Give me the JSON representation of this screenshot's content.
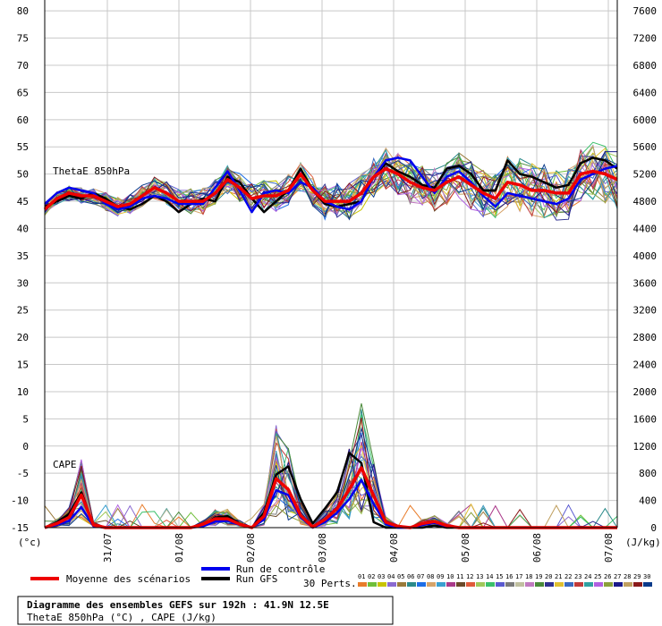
{
  "chart_data": {
    "type": "line",
    "title": "Diagramme des ensembles GEFS sur 192h : 41.9N 12.5E",
    "subtitle": "ThetaE 850hPa (°C) , CAPE (J/kg)",
    "left_axis_unit": "(°c)",
    "right_axis_unit": "(J/kg)",
    "left_ticks": [
      80,
      75,
      70,
      65,
      60,
      55,
      50,
      45,
      40,
      35,
      30,
      25,
      20,
      15,
      10,
      5,
      0,
      -5,
      -10,
      -15
    ],
    "right_ticks": [
      7600,
      7200,
      6800,
      6400,
      6000,
      5600,
      5200,
      4800,
      4400,
      4000,
      3600,
      3200,
      2800,
      2400,
      2000,
      1600,
      1200,
      800,
      400,
      0
    ],
    "ylim": [
      -15,
      82
    ],
    "right_ylim": [
      0,
      7760
    ],
    "x_ticks": [
      "31/07",
      "01/08",
      "02/08",
      "03/08",
      "04/08",
      "05/08",
      "06/08",
      "07/08"
    ],
    "x_step_hours": 6,
    "grid": true,
    "panel_labels": [
      "ThetaE 850hPa",
      "CAPE"
    ],
    "legend": {
      "mean_label": "Moyenne des scénarios",
      "control_label": "Run de contrôle",
      "gfs_label": "Run GFS",
      "perts_label": "30 Perts.",
      "perts_numbers": [
        "01",
        "02",
        "03",
        "04",
        "05",
        "06",
        "07",
        "08",
        "09",
        "10",
        "11",
        "12",
        "13",
        "14",
        "15",
        "16",
        "17",
        "18",
        "19",
        "20",
        "21",
        "22",
        "23",
        "24",
        "25",
        "26",
        "27",
        "28",
        "29",
        "30"
      ]
    },
    "colors": {
      "mean": "#ee0000",
      "control": "#0000ee",
      "gfs": "#000000",
      "perts": [
        "#e87c2a",
        "#6fbf3a",
        "#c8c400",
        "#8a6ad0",
        "#9a7a3a",
        "#2a8a8a",
        "#1e6ee6",
        "#d6a46a",
        "#3aa0d0",
        "#aa3a8a",
        "#6a4a2a",
        "#e05a3a",
        "#a0c85a",
        "#3ac06a",
        "#5a5ad0",
        "#7a7a7a",
        "#c0c0a0",
        "#c07ac0",
        "#4a8a3a",
        "#303090",
        "#e0c030",
        "#3a6ac0",
        "#c03a3a",
        "#30a0a0",
        "#b060e0",
        "#8aa03a",
        "#1a1a8a",
        "#c0a060",
        "#8a1a1a",
        "#0a3a8a"
      ]
    },
    "series": [
      {
        "name": "Moyenne des scénarios",
        "role": "mean",
        "panel": "thetae",
        "values": [
          43.5,
          45.5,
          46.5,
          46.0,
          46.0,
          45.0,
          44.0,
          44.5,
          46.0,
          47.5,
          46.5,
          45.0,
          45.0,
          45.0,
          46.5,
          49.0,
          47.5,
          45.5,
          46.0,
          46.0,
          47.0,
          50.0,
          47.0,
          45.0,
          45.0,
          45.0,
          46.5,
          49.5,
          51.0,
          50.0,
          48.5,
          47.5,
          47.0,
          48.5,
          49.5,
          48.0,
          46.5,
          45.5,
          48.5,
          48.0,
          47.0,
          47.0,
          46.5,
          46.5,
          50.0,
          50.5,
          50.0,
          49.0
        ]
      },
      {
        "name": "Run de contrôle",
        "role": "control",
        "panel": "thetae",
        "values": [
          44.5,
          46.5,
          47.5,
          47.0,
          46.5,
          44.5,
          43.5,
          44.0,
          45.5,
          46.0,
          45.5,
          44.5,
          44.5,
          44.5,
          47.5,
          50.5,
          47.0,
          43.0,
          46.5,
          47.0,
          46.5,
          48.5,
          47.5,
          45.0,
          44.0,
          43.5,
          45.0,
          49.5,
          52.5,
          53.0,
          52.5,
          49.5,
          46.5,
          49.5,
          50.5,
          48.5,
          46.0,
          44.0,
          46.5,
          46.0,
          45.5,
          45.0,
          44.5,
          45.5,
          49.0,
          50.0,
          51.0,
          51.5
        ]
      },
      {
        "name": "Run GFS",
        "role": "gfs",
        "panel": "thetae",
        "values": [
          44.0,
          45.0,
          46.0,
          45.5,
          46.5,
          45.5,
          44.0,
          43.5,
          44.5,
          46.0,
          45.0,
          43.0,
          44.5,
          45.5,
          45.0,
          49.5,
          48.5,
          45.5,
          43.0,
          45.0,
          47.0,
          51.0,
          47.0,
          44.5,
          44.0,
          44.5,
          45.0,
          49.5,
          52.0,
          50.5,
          49.5,
          48.0,
          47.5,
          51.0,
          51.5,
          50.0,
          47.0,
          47.0,
          52.5,
          50.0,
          49.5,
          48.5,
          47.5,
          48.0,
          52.0,
          53.0,
          52.5,
          51.0
        ]
      },
      {
        "name": "Moyenne des scénarios",
        "role": "mean",
        "panel": "cape",
        "values": [
          0,
          60,
          150,
          480,
          40,
          0,
          0,
          0,
          0,
          0,
          0,
          0,
          0,
          50,
          130,
          130,
          50,
          0,
          170,
          720,
          560,
          180,
          10,
          120,
          280,
          560,
          880,
          470,
          80,
          20,
          0,
          60,
          90,
          30,
          0,
          0,
          0,
          0,
          0,
          0,
          0,
          0,
          0,
          0,
          0,
          0,
          0,
          0
        ]
      },
      {
        "name": "Run de contrôle",
        "role": "control",
        "panel": "cape",
        "values": [
          0,
          40,
          100,
          300,
          20,
          0,
          0,
          0,
          0,
          0,
          0,
          0,
          0,
          20,
          90,
          100,
          40,
          0,
          120,
          550,
          480,
          150,
          0,
          80,
          220,
          420,
          700,
          350,
          50,
          0,
          0,
          40,
          70,
          20,
          0,
          0,
          0,
          0,
          0,
          0,
          0,
          0,
          0,
          0,
          0,
          0,
          0,
          0
        ]
      },
      {
        "name": "Run GFS",
        "role": "gfs",
        "panel": "cape",
        "values": [
          0,
          80,
          200,
          520,
          30,
          0,
          0,
          0,
          0,
          0,
          0,
          0,
          0,
          40,
          150,
          170,
          60,
          0,
          220,
          780,
          900,
          420,
          60,
          280,
          520,
          1100,
          950,
          80,
          0,
          0,
          0,
          0,
          30,
          0,
          0,
          0,
          0,
          0,
          0,
          0,
          0,
          0,
          0,
          0,
          0,
          0,
          0,
          0
        ]
      }
    ]
  }
}
